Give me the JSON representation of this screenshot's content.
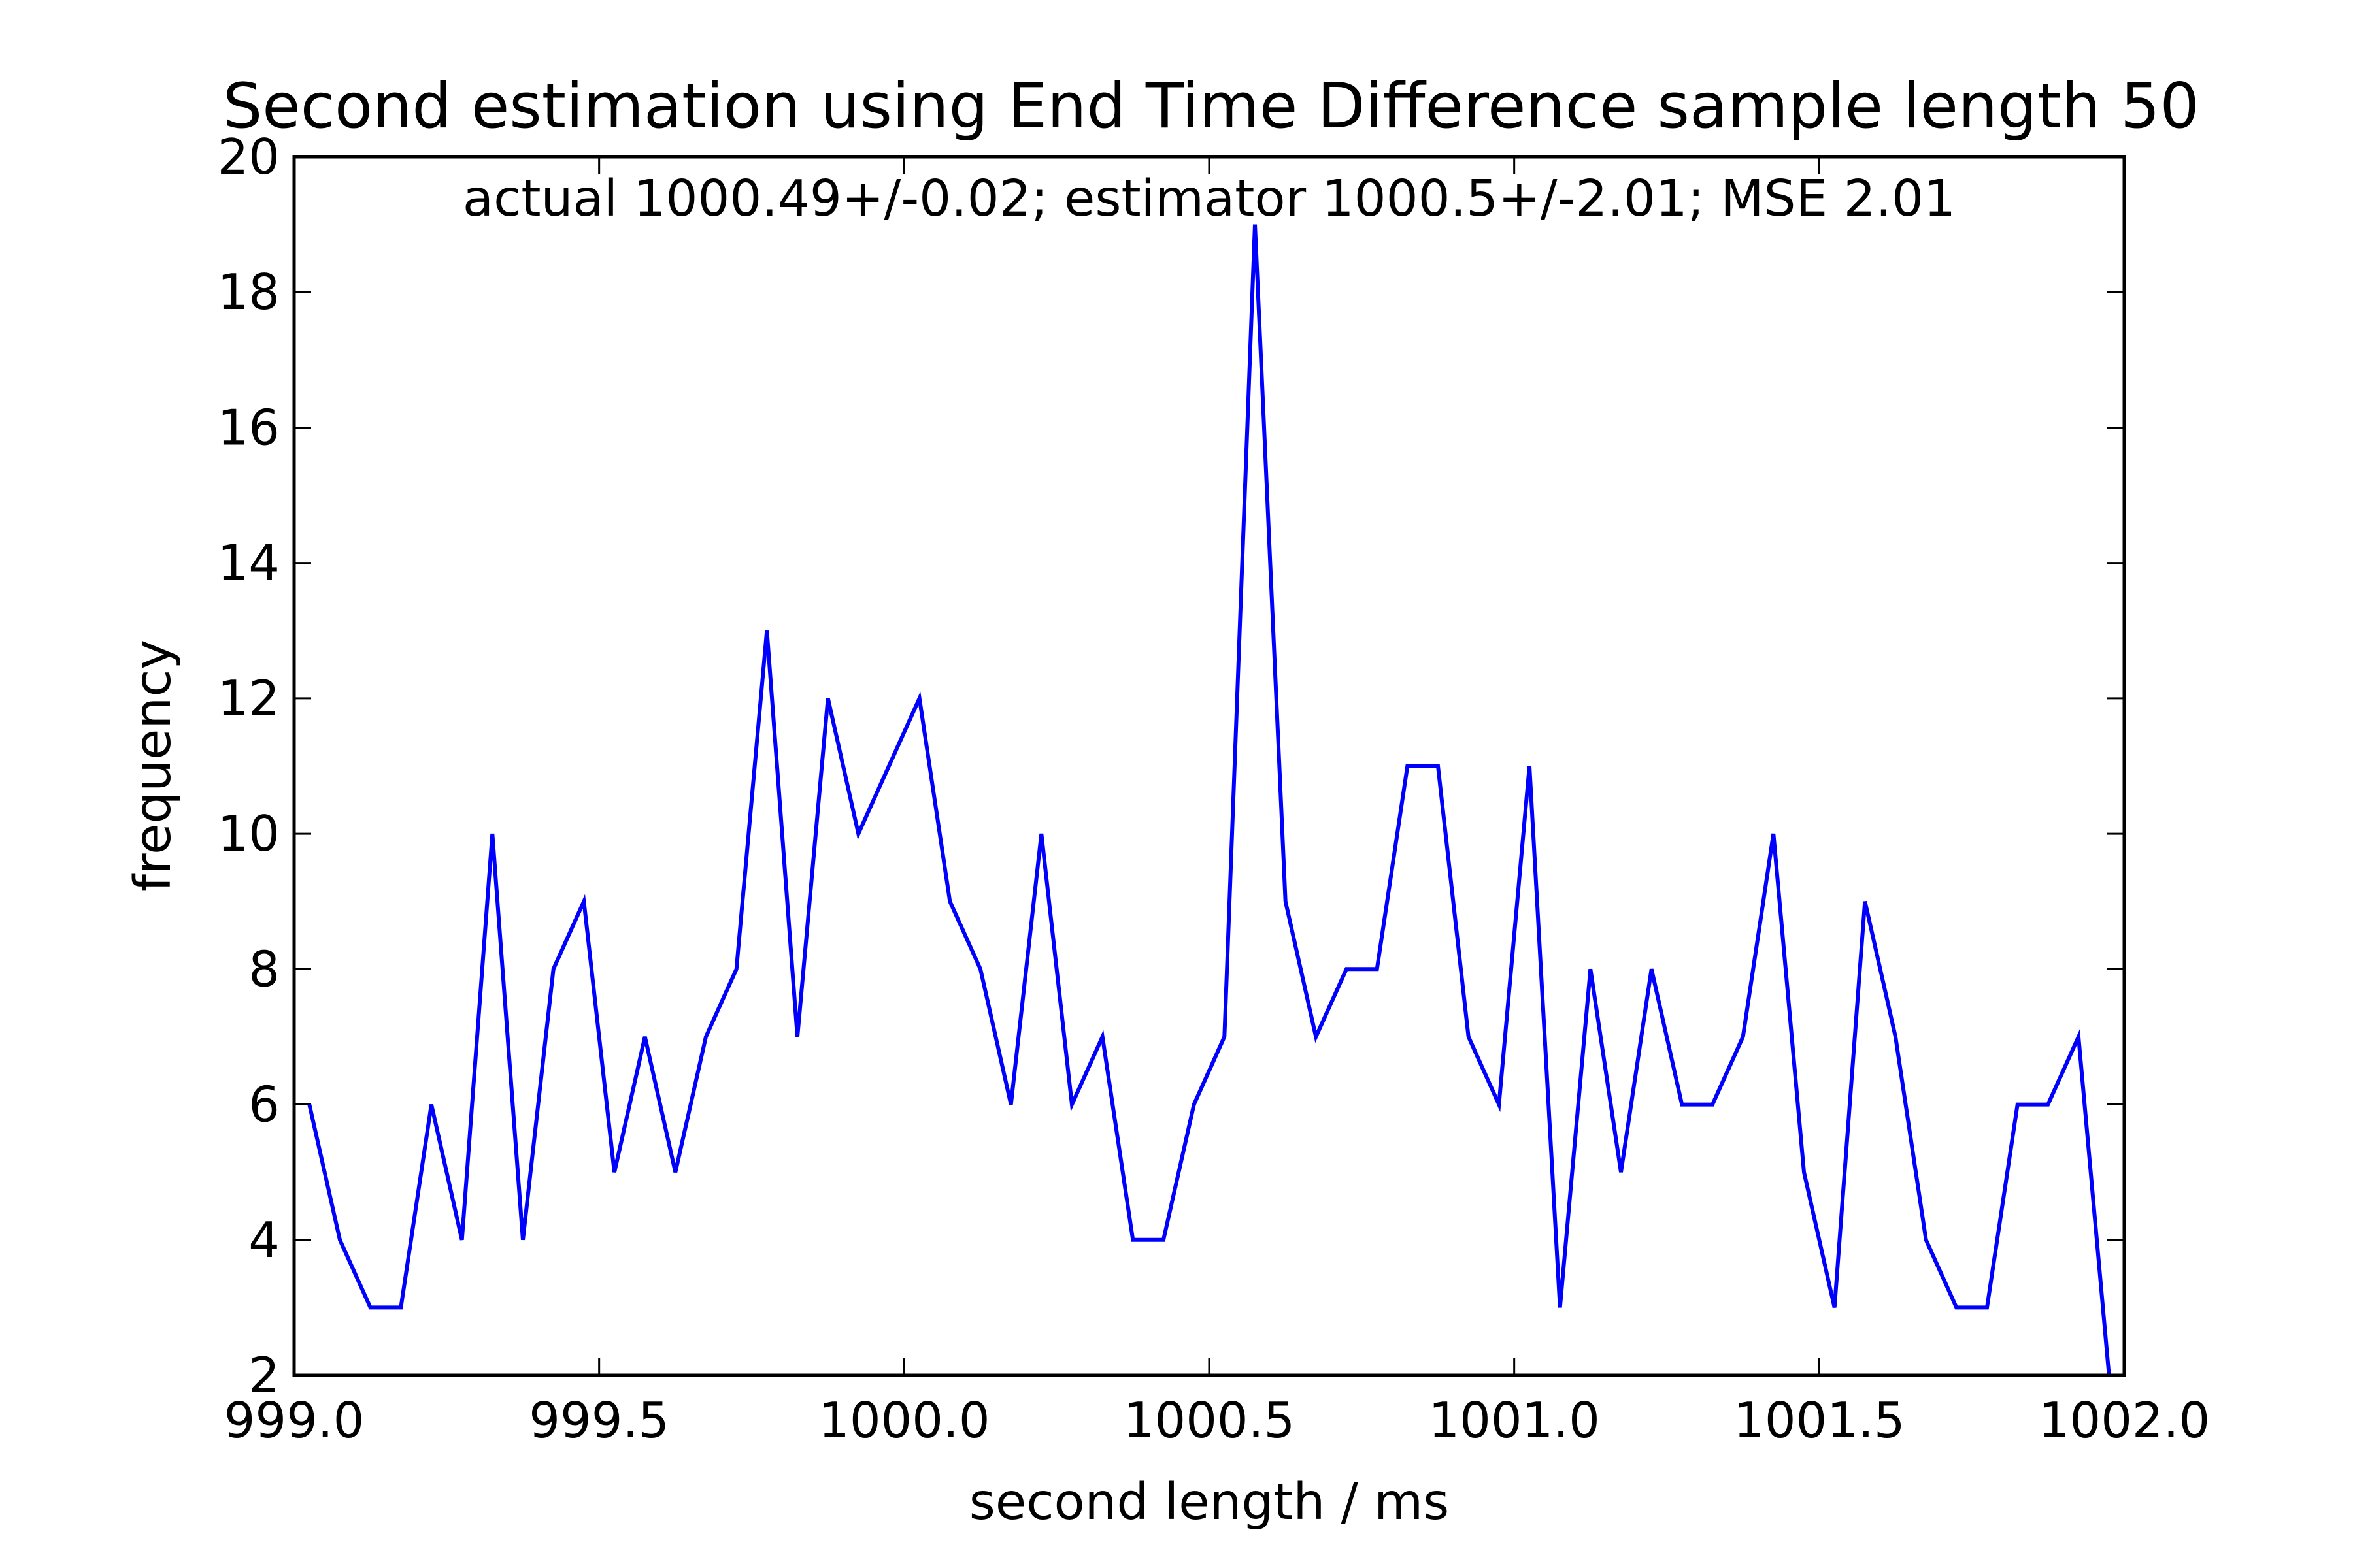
{
  "chart_data": {
    "type": "line",
    "title": "Second estimation using End Time Difference sample length 50",
    "annotation": "actual 1000.49+/-0.02;  estimator 1000.5+/-2.01;  MSE 2.01",
    "xlabel": "second length / ms",
    "ylabel": "frequency",
    "xlim": [
      999.0,
      1002.0
    ],
    "ylim": [
      2,
      20
    ],
    "x_ticks": [
      "999.0",
      "999.5",
      "1000.0",
      "1000.5",
      "1001.0",
      "1001.5",
      "1002.0"
    ],
    "y_ticks": [
      "2",
      "4",
      "6",
      "8",
      "10",
      "12",
      "14",
      "16",
      "18",
      "20"
    ],
    "grid": false,
    "series": [
      {
        "color": "#0000ff",
        "x": [
          999.025,
          999.075,
          999.125,
          999.175,
          999.225,
          999.275,
          999.325,
          999.375,
          999.425,
          999.475,
          999.525,
          999.575,
          999.625,
          999.675,
          999.725,
          999.775,
          999.825,
          999.875,
          999.925,
          999.975,
          1000.025,
          1000.075,
          1000.125,
          1000.175,
          1000.225,
          1000.275,
          1000.325,
          1000.375,
          1000.425,
          1000.475,
          1000.525,
          1000.575,
          1000.625,
          1000.675,
          1000.725,
          1000.775,
          1000.825,
          1000.875,
          1000.925,
          1000.975,
          1001.025,
          1001.075,
          1001.125,
          1001.175,
          1001.225,
          1001.275,
          1001.325,
          1001.375,
          1001.425,
          1001.475,
          1001.525,
          1001.575,
          1001.625,
          1001.675,
          1001.725,
          1001.775,
          1001.825,
          1001.875,
          1001.925,
          1001.975
        ],
        "y": [
          6,
          4,
          3,
          3,
          6,
          4,
          10,
          4,
          8,
          9,
          5,
          7,
          5,
          7,
          8,
          13,
          7,
          12,
          10,
          11,
          12,
          9,
          8,
          6,
          10,
          6,
          7,
          4,
          4,
          6,
          7,
          19,
          9,
          7,
          8,
          8,
          11,
          11,
          7,
          6,
          11,
          3,
          8,
          5,
          8,
          6,
          6,
          7,
          10,
          5,
          3,
          9,
          7,
          4,
          3,
          3,
          6,
          6,
          7,
          2
        ]
      }
    ]
  }
}
